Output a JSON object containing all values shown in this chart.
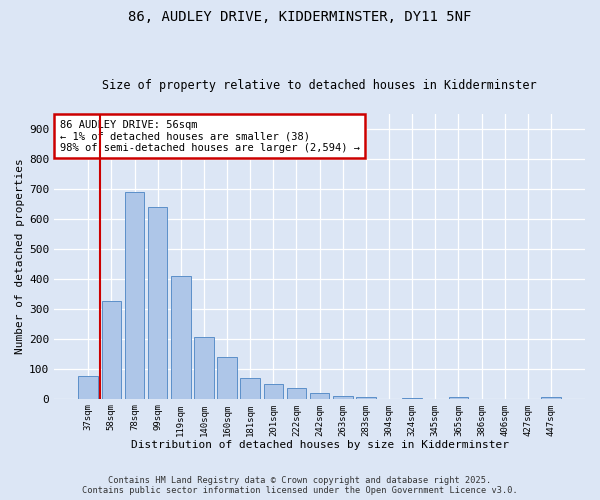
{
  "title_line1": "86, AUDLEY DRIVE, KIDDERMINSTER, DY11 5NF",
  "title_line2": "Size of property relative to detached houses in Kidderminster",
  "xlabel": "Distribution of detached houses by size in Kidderminster",
  "ylabel": "Number of detached properties",
  "categories": [
    "37sqm",
    "58sqm",
    "78sqm",
    "99sqm",
    "119sqm",
    "140sqm",
    "160sqm",
    "181sqm",
    "201sqm",
    "222sqm",
    "242sqm",
    "263sqm",
    "283sqm",
    "304sqm",
    "324sqm",
    "345sqm",
    "365sqm",
    "386sqm",
    "406sqm",
    "427sqm",
    "447sqm"
  ],
  "values": [
    75,
    325,
    690,
    640,
    410,
    205,
    138,
    70,
    48,
    35,
    20,
    10,
    7,
    0,
    4,
    0,
    5,
    0,
    0,
    0,
    5
  ],
  "bar_color": "#aec6e8",
  "bar_edge_color": "#5b8fc9",
  "annotation_text": "86 AUDLEY DRIVE: 56sqm\n← 1% of detached houses are smaller (38)\n98% of semi-detached houses are larger (2,594) →",
  "annotation_box_color": "#ffffff",
  "annotation_box_edge_color": "#cc0000",
  "red_line_x": 0.5,
  "ylim": [
    0,
    950
  ],
  "yticks": [
    0,
    100,
    200,
    300,
    400,
    500,
    600,
    700,
    800,
    900
  ],
  "background_color": "#dce6f5",
  "grid_color": "#ffffff",
  "footer_line1": "Contains HM Land Registry data © Crown copyright and database right 2025.",
  "footer_line2": "Contains public sector information licensed under the Open Government Licence v3.0."
}
